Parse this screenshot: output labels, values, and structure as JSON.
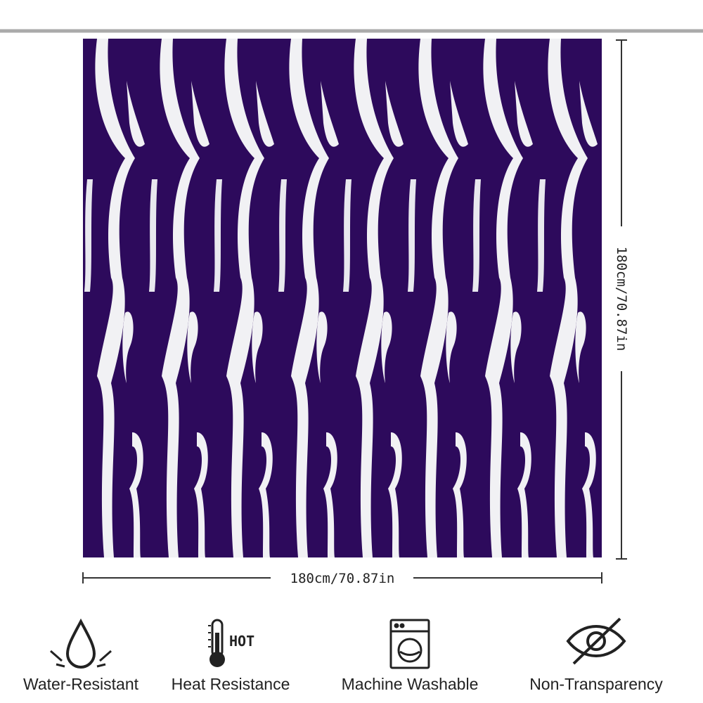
{
  "dimensions": {
    "width": "180cm/70.87in",
    "height": "180cm/70.87in"
  },
  "features": [
    {
      "label": "Water-Resistant"
    },
    {
      "label": "Heat Resistance",
      "icon_text": "HOT"
    },
    {
      "label": "Machine Washable"
    },
    {
      "label": "Non-Transparency"
    }
  ]
}
